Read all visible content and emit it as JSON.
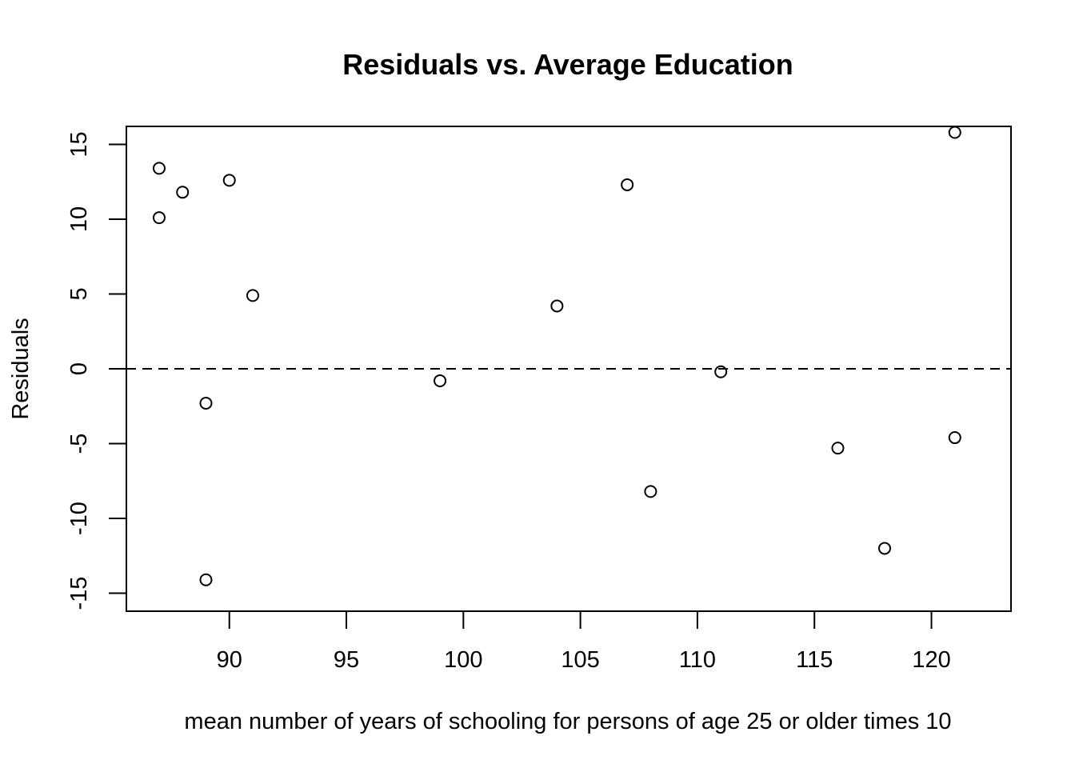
{
  "chart_data": {
    "type": "scatter",
    "title": "Residuals vs. Average Education",
    "xlabel": "mean number of years of schooling for persons of age 25 or older times 10",
    "ylabel": "Residuals",
    "xlim": [
      85.6,
      123.4
    ],
    "ylim": [
      -16.2,
      16.2
    ],
    "x_ticks": [
      90,
      95,
      100,
      105,
      110,
      115,
      120
    ],
    "y_ticks": [
      -15,
      -10,
      -5,
      0,
      5,
      10,
      15
    ],
    "x_tick_labels": [
      "90",
      "95",
      "100",
      "105",
      "110",
      "115",
      "120"
    ],
    "y_tick_labels": [
      "-15",
      "-10",
      "-5",
      "0",
      "5",
      "10",
      "15"
    ],
    "reference_line": {
      "y": 0,
      "style": "dashed"
    },
    "grid": false,
    "points": [
      {
        "x": 87,
        "y": 13.4
      },
      {
        "x": 87,
        "y": 10.1
      },
      {
        "x": 88,
        "y": 11.8
      },
      {
        "x": 89,
        "y": -2.3
      },
      {
        "x": 89,
        "y": -14.1
      },
      {
        "x": 90,
        "y": 12.6
      },
      {
        "x": 91,
        "y": 4.9
      },
      {
        "x": 99,
        "y": -0.8
      },
      {
        "x": 104,
        "y": 4.2
      },
      {
        "x": 107,
        "y": 12.3
      },
      {
        "x": 108,
        "y": -8.2
      },
      {
        "x": 111,
        "y": -0.2
      },
      {
        "x": 116,
        "y": -5.3
      },
      {
        "x": 118,
        "y": -12.0
      },
      {
        "x": 121,
        "y": 15.8
      },
      {
        "x": 121,
        "y": -4.6
      }
    ]
  }
}
